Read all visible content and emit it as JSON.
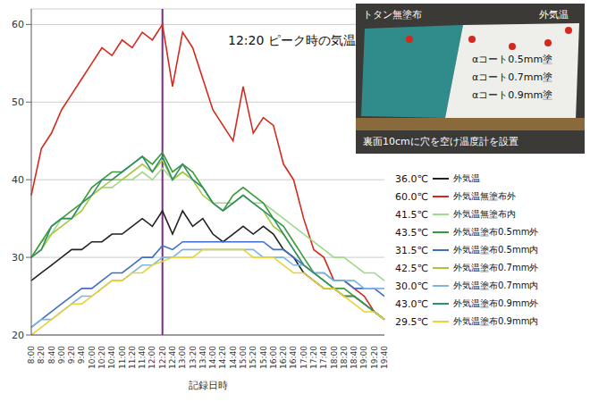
{
  "chart_data": {
    "type": "line",
    "x_label": "記録日時",
    "categories": [
      "8:00",
      "8:20",
      "8:40",
      "9:00",
      "9:20",
      "9:40",
      "10:00",
      "10:20",
      "10:40",
      "11:00",
      "11:20",
      "11:40",
      "12:00",
      "12:20",
      "12:40",
      "13:00",
      "13:20",
      "13:40",
      "14:00",
      "14:20",
      "14:40",
      "15:00",
      "15:20",
      "15:40",
      "16:00",
      "16:20",
      "16:40",
      "17:00",
      "17:20",
      "17:40",
      "18:00",
      "18:20",
      "18:40",
      "19:00",
      "19:20",
      "19:40"
    ],
    "ylim": [
      20,
      62
    ],
    "yticks": [
      20,
      30,
      40,
      50,
      60
    ],
    "grid": true,
    "legend": "right",
    "annotation": {
      "text": "12:20 ピーク時の気温",
      "x": "12:20"
    },
    "series": [
      {
        "name": "外気温",
        "color": "#222222",
        "peak_label": "36.0℃",
        "values": [
          27,
          28,
          29,
          30,
          31,
          31,
          32,
          32,
          33,
          33,
          34,
          35,
          34,
          36,
          33,
          36,
          34,
          35,
          33,
          32,
          33,
          34,
          33,
          34,
          33,
          31,
          30,
          28,
          27,
          26,
          26,
          25,
          25,
          24,
          23,
          22
        ]
      },
      {
        "name": "外気温無塗布外",
        "color": "#d42a1e",
        "peak_label": "60.0℃",
        "values": [
          38,
          44,
          46,
          49,
          51,
          53,
          55,
          57,
          56,
          58,
          57,
          59,
          58,
          60,
          52,
          59,
          57,
          53,
          49,
          47,
          45,
          52,
          46,
          48,
          47,
          42,
          40,
          35,
          31,
          30,
          27,
          27,
          26,
          25,
          23,
          22
        ]
      },
      {
        "name": "外気温無塗布内",
        "color": "#9fd88a",
        "peak_label": "41.5℃",
        "values": [
          30,
          32,
          33,
          35,
          35,
          37,
          38,
          39,
          39,
          40,
          40,
          41,
          40,
          41.5,
          40,
          41,
          40,
          39,
          37,
          37,
          37,
          38,
          37,
          37,
          36,
          35,
          34,
          33,
          32,
          31,
          30,
          30,
          29,
          28,
          28,
          27
        ]
      },
      {
        "name": "外気温塗布0.5mm外",
        "color": "#3a9a3a",
        "peak_label": "43.5℃",
        "values": [
          30,
          32,
          34,
          35,
          36,
          37,
          39,
          40,
          41,
          41,
          42,
          43,
          42,
          43.5,
          41,
          42,
          41,
          39,
          37,
          36,
          38,
          39,
          38,
          37,
          35,
          34,
          32,
          30,
          28,
          27,
          26,
          26,
          25,
          24,
          23,
          22
        ]
      },
      {
        "name": "外気温塗布0.5mm内",
        "color": "#3e6fc4",
        "peak_label": "31.5℃",
        "values": [
          21,
          22,
          23,
          24,
          25,
          26,
          26,
          27,
          28,
          28,
          29,
          30,
          30,
          31.5,
          31,
          32,
          32,
          32,
          32,
          32,
          32,
          32,
          32,
          32,
          31,
          31,
          30,
          29,
          28,
          28,
          27,
          27,
          26,
          26,
          26,
          25
        ]
      },
      {
        "name": "外気温塗布0.7mm外",
        "color": "#a8c83c",
        "peak_label": "42.5℃",
        "values": [
          30,
          31,
          33,
          34,
          35,
          36,
          38,
          39,
          40,
          40,
          41,
          42,
          41,
          42.5,
          40,
          41,
          40,
          38,
          37,
          36,
          37,
          38,
          37,
          36,
          34,
          33,
          31,
          29,
          28,
          27,
          26,
          25,
          25,
          24,
          23,
          22
        ]
      },
      {
        "name": "外気温塗布0.7mm内",
        "color": "#7fb3e0",
        "peak_label": "30.0℃",
        "values": [
          21,
          22,
          22,
          23,
          24,
          25,
          25,
          26,
          27,
          27,
          28,
          29,
          29,
          30,
          30,
          31,
          31,
          31,
          31,
          31,
          31,
          31,
          31,
          30,
          30,
          30,
          29,
          29,
          28,
          28,
          27,
          27,
          27,
          26,
          26,
          26
        ]
      },
      {
        "name": "外気温塗布0.9mm外",
        "color": "#2f8f6a",
        "peak_label": "43.0℃",
        "values": [
          30,
          31,
          34,
          35,
          35,
          37,
          38,
          40,
          40,
          41,
          42,
          43,
          41,
          43,
          40,
          42,
          40,
          39,
          37,
          36,
          37,
          38,
          37,
          36,
          35,
          33,
          31,
          29,
          28,
          27,
          26,
          25,
          25,
          24,
          23,
          22
        ]
      },
      {
        "name": "外気温塗布0.9mm内",
        "color": "#e8d23a",
        "peak_label": "29.5℃",
        "values": [
          20,
          21,
          22,
          23,
          24,
          24,
          25,
          26,
          27,
          27,
          28,
          28,
          29,
          29.5,
          30,
          30,
          30,
          31,
          31,
          31,
          31,
          31,
          30,
          30,
          30,
          29,
          28,
          28,
          27,
          26,
          26,
          25,
          24,
          23,
          23,
          22
        ]
      }
    ]
  },
  "inset": {
    "labels": [
      "トタン無塗布",
      "外気温",
      "αコート0.5mm塗",
      "αコート0.7mm塗",
      "αコート0.9mm塗",
      "裏面10cmに穴を空け温度計を設置"
    ]
  }
}
